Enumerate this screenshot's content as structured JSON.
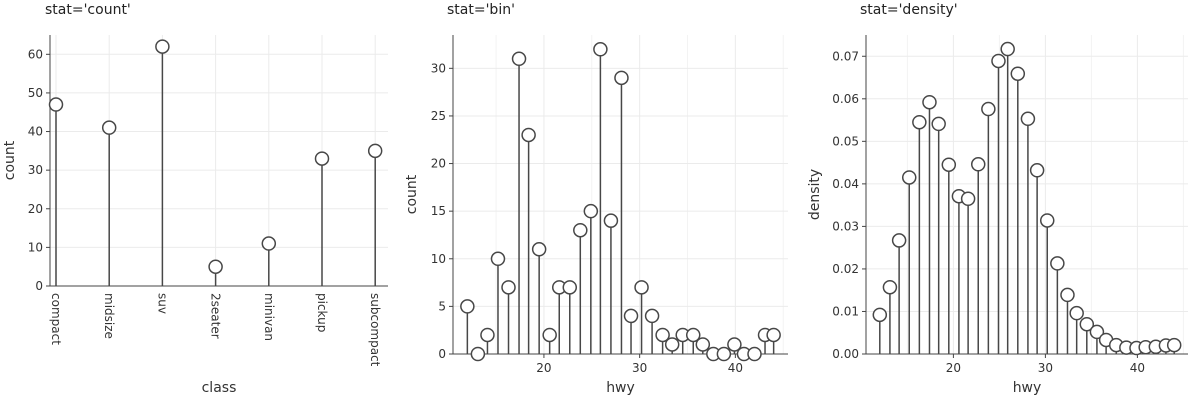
{
  "chart_data": [
    {
      "type": "lollipop",
      "title": "stat='count'",
      "xlabel": "class",
      "ylabel": "count",
      "categories": [
        "compact",
        "midsize",
        "suv",
        "2seater",
        "minivan",
        "pickup",
        "subcompact"
      ],
      "values": [
        47,
        41,
        62,
        5,
        11,
        33,
        35
      ],
      "ylim": [
        0,
        65
      ],
      "yticks": [
        0,
        10,
        20,
        30,
        40,
        50,
        60
      ],
      "grid": true
    },
    {
      "type": "lollipop",
      "title": "stat='bin'",
      "xlabel": "hwy",
      "ylabel": "count",
      "x": [
        12.0,
        13.1,
        14.1,
        15.2,
        16.3,
        17.4,
        18.4,
        19.5,
        20.6,
        21.6,
        22.7,
        23.8,
        24.9,
        25.9,
        27.0,
        28.1,
        29.1,
        30.2,
        31.3,
        32.4,
        33.4,
        34.5,
        35.6,
        36.6,
        37.7,
        38.8,
        39.9,
        40.9,
        42.0,
        43.1,
        44.0
      ],
      "values": [
        5,
        0,
        2,
        10,
        7,
        31,
        23,
        11,
        2,
        7,
        7,
        13,
        15,
        32,
        14,
        29,
        4,
        7,
        4,
        2,
        1,
        2,
        2,
        1,
        0,
        0,
        1,
        0,
        0,
        2,
        2
      ],
      "xlim": [
        10.5,
        45.5
      ],
      "ylim": [
        0,
        33.5
      ],
      "xticks": [
        20,
        30,
        40
      ],
      "yticks": [
        0,
        5,
        10,
        15,
        20,
        25,
        30
      ],
      "grid": true
    },
    {
      "type": "lollipop",
      "title": "stat='density'",
      "xlabel": "hwy",
      "ylabel": "density",
      "x": [
        12.0,
        13.1,
        14.1,
        15.2,
        16.3,
        17.4,
        18.4,
        19.5,
        20.6,
        21.6,
        22.7,
        23.8,
        24.9,
        25.9,
        27.0,
        28.1,
        29.1,
        30.2,
        31.3,
        32.4,
        33.4,
        34.5,
        35.6,
        36.6,
        37.7,
        38.8,
        39.9,
        40.9,
        42.0,
        43.1,
        44.0
      ],
      "values": [
        0.0092,
        0.0157,
        0.0267,
        0.0415,
        0.0545,
        0.0592,
        0.0541,
        0.0445,
        0.0371,
        0.0365,
        0.0446,
        0.0576,
        0.0689,
        0.0717,
        0.0659,
        0.0553,
        0.0432,
        0.0314,
        0.0213,
        0.0139,
        0.0096,
        0.007,
        0.0052,
        0.0033,
        0.0021,
        0.0015,
        0.0014,
        0.0016,
        0.0017,
        0.002,
        0.0021
      ],
      "xlim": [
        10.5,
        45.5
      ],
      "ylim": [
        0,
        0.075
      ],
      "xticks": [
        20,
        30,
        40
      ],
      "yticks": [
        0.0,
        0.01,
        0.02,
        0.03,
        0.04,
        0.05,
        0.06,
        0.07
      ],
      "grid": true
    }
  ]
}
